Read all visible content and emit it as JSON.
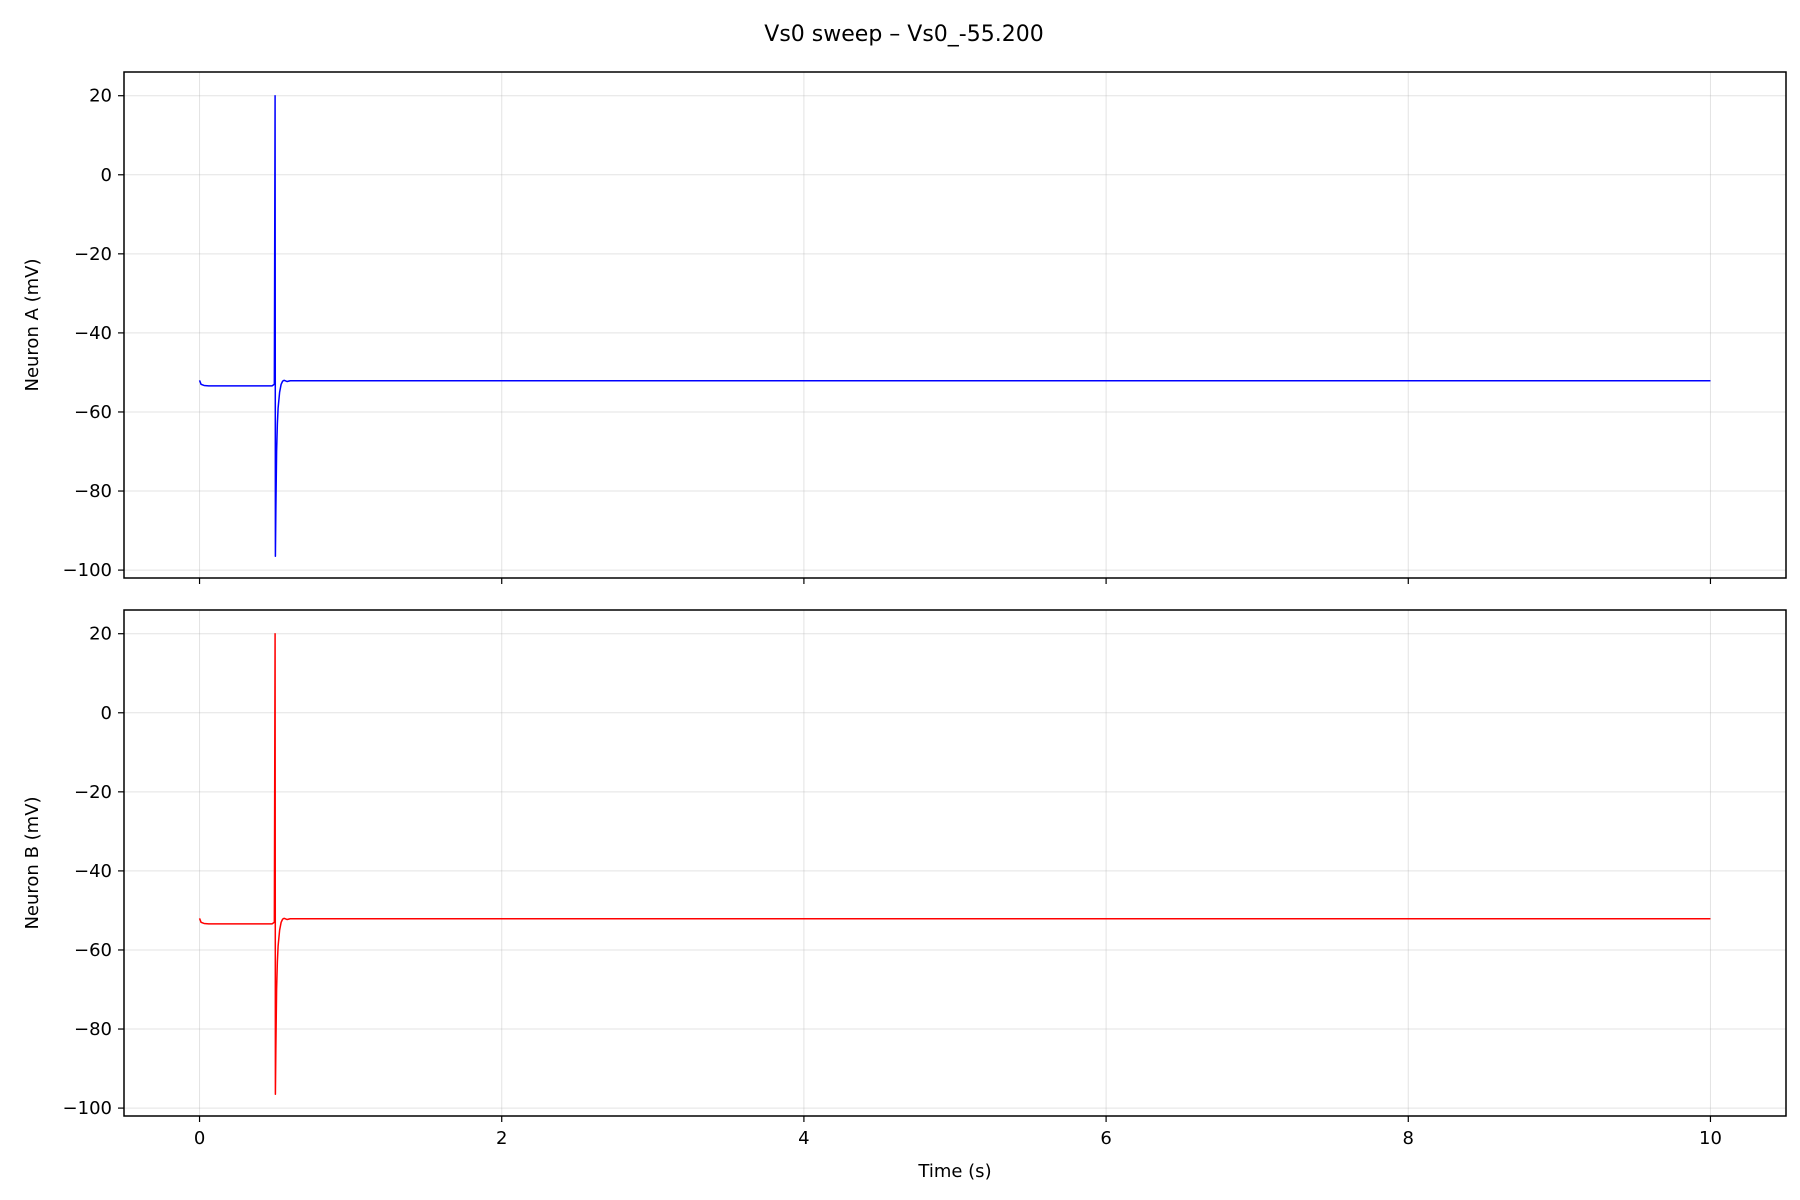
{
  "chart_data": [
    {
      "type": "line",
      "title": "Vs0 sweep – Vs0_-55.200",
      "xlabel": "",
      "ylabel": "Neuron A (mV)",
      "xlim": [
        -0.5,
        10.5
      ],
      "ylim": [
        -102,
        26
      ],
      "xticks": [
        0,
        2,
        4,
        6,
        8,
        10
      ],
      "yticks": [
        20,
        0,
        -20,
        -40,
        -60,
        -80,
        -100
      ],
      "xtick_labels_visible": false,
      "grid": true,
      "color": "#0000ff",
      "x": [
        0.0,
        0.01,
        0.03,
        0.06,
        0.1,
        0.2,
        0.3,
        0.4,
        0.48,
        0.495,
        0.5,
        0.502,
        0.505,
        0.51,
        0.515,
        0.52,
        0.53,
        0.54,
        0.55,
        0.56,
        0.58,
        0.6,
        0.62,
        0.7,
        1.0,
        2.0,
        4.0,
        6.0,
        8.0,
        10.0
      ],
      "y": [
        -52.0,
        -53.0,
        -53.3,
        -53.4,
        -53.4,
        -53.4,
        -53.4,
        -53.4,
        -53.4,
        -53.0,
        20.0,
        -96.5,
        -85.0,
        -70.0,
        -63.0,
        -59.0,
        -55.0,
        -53.0,
        -52.2,
        -52.0,
        -52.3,
        -52.1,
        -52.1,
        -52.1,
        -52.1,
        -52.1,
        -52.1,
        -52.1,
        -52.1,
        -52.1
      ]
    },
    {
      "type": "line",
      "xlabel": "Time (s)",
      "ylabel": "Neuron B (mV)",
      "xlim": [
        -0.5,
        10.5
      ],
      "ylim": [
        -102,
        26
      ],
      "xticks": [
        0,
        2,
        4,
        6,
        8,
        10
      ],
      "yticks": [
        20,
        0,
        -20,
        -40,
        -60,
        -80,
        -100
      ],
      "xtick_labels_visible": true,
      "grid": true,
      "color": "#ff0000",
      "x": [
        0.0,
        0.01,
        0.03,
        0.06,
        0.1,
        0.2,
        0.3,
        0.4,
        0.48,
        0.495,
        0.5,
        0.502,
        0.505,
        0.51,
        0.515,
        0.52,
        0.53,
        0.54,
        0.55,
        0.56,
        0.58,
        0.6,
        0.62,
        0.7,
        1.0,
        2.0,
        4.0,
        6.0,
        8.0,
        10.0
      ],
      "y": [
        -52.0,
        -53.0,
        -53.3,
        -53.4,
        -53.4,
        -53.4,
        -53.4,
        -53.4,
        -53.4,
        -53.0,
        20.0,
        -96.5,
        -85.0,
        -70.0,
        -63.0,
        -59.0,
        -55.0,
        -53.0,
        -52.2,
        -52.0,
        -52.3,
        -52.1,
        -52.1,
        -52.1,
        -52.1,
        -52.1,
        -52.1,
        -52.1,
        -52.1,
        -52.1
      ]
    }
  ]
}
